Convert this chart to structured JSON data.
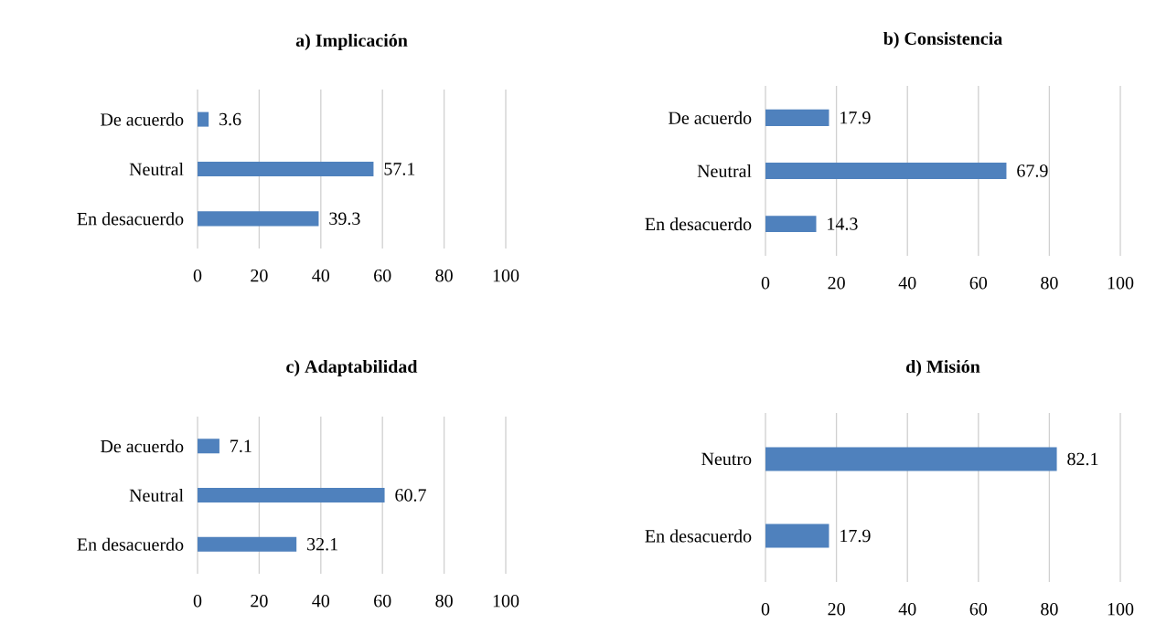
{
  "chart_data": [
    {
      "type": "bar",
      "orientation": "horizontal",
      "title": "a) Implicación",
      "categories": [
        "De acuerdo",
        "Neutral",
        "En desacuerdo"
      ],
      "values": [
        3.6,
        57.1,
        39.3
      ],
      "color": "#4f81bd",
      "xlim": [
        0,
        100
      ],
      "xticks": [
        0,
        20,
        40,
        60,
        80,
        100
      ],
      "grid": "x",
      "data_labels": true
    },
    {
      "type": "bar",
      "orientation": "horizontal",
      "title": "b) Consistencia",
      "categories": [
        "De acuerdo",
        "Neutral",
        "En desacuerdo"
      ],
      "values": [
        17.9,
        67.9,
        14.3
      ],
      "color": "#4f81bd",
      "xlim": [
        0,
        100
      ],
      "xticks": [
        0,
        20,
        40,
        60,
        80,
        100
      ],
      "grid": "x",
      "data_labels": true
    },
    {
      "type": "bar",
      "orientation": "horizontal",
      "title": "c) Adaptabilidad",
      "categories": [
        "De acuerdo",
        "Neutral",
        "En desacuerdo"
      ],
      "values": [
        7.1,
        60.7,
        32.1
      ],
      "color": "#4f81bd",
      "xlim": [
        0,
        100
      ],
      "xticks": [
        0,
        20,
        40,
        60,
        80,
        100
      ],
      "grid": "x",
      "data_labels": true
    },
    {
      "type": "bar",
      "orientation": "horizontal",
      "title": "d) Misión",
      "categories": [
        "Neutro",
        "En desacuerdo"
      ],
      "values": [
        82.1,
        17.9
      ],
      "color": "#4f81bd",
      "xlim": [
        0,
        100
      ],
      "xticks": [
        0,
        20,
        40,
        60,
        80,
        100
      ],
      "grid": "x",
      "data_labels": true
    }
  ]
}
